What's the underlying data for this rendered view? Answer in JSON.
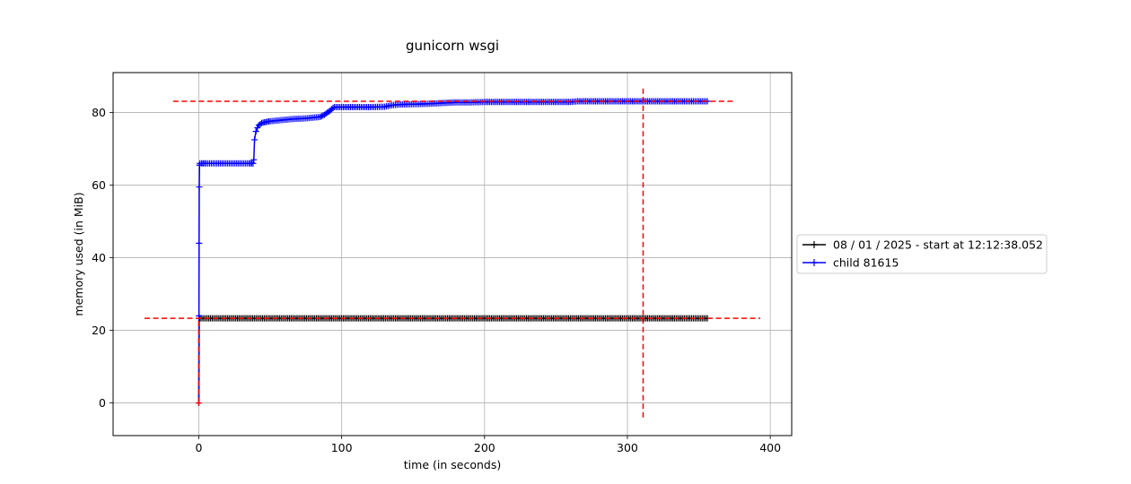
{
  "chart_data": {
    "type": "line",
    "title": "gunicorn wsgi",
    "xlabel": "time (in seconds)",
    "ylabel": "memory used (in MiB)",
    "xlim": [
      -60,
      415
    ],
    "ylim": [
      -9,
      91
    ],
    "xticks": [
      0,
      100,
      200,
      300,
      400
    ],
    "yticks": [
      0,
      20,
      40,
      60,
      80
    ],
    "grid": true,
    "legend_position": "outside-right",
    "series": [
      {
        "name": "08 / 01 / 2025 - start at 12:12:38.052",
        "color": "#000000",
        "marker": "+",
        "x": [
          0,
          0.3,
          1,
          20,
          40,
          60,
          80,
          100,
          120,
          140,
          160,
          180,
          200,
          220,
          240,
          260,
          280,
          300,
          320,
          340,
          356
        ],
        "y": [
          0,
          23.3,
          23.3,
          23.3,
          23.3,
          23.3,
          23.3,
          23.3,
          23.3,
          23.3,
          23.3,
          23.3,
          23.3,
          23.3,
          23.3,
          23.3,
          23.3,
          23.3,
          23.3,
          23.3,
          23.3
        ]
      },
      {
        "name": "child 81615",
        "color": "#0000ff",
        "marker": "+",
        "x": [
          0,
          0.1,
          0.2,
          0.3,
          0.5,
          0.8,
          2,
          5,
          10,
          15,
          20,
          25,
          30,
          35,
          38,
          38.5,
          39,
          40,
          41,
          42,
          44,
          47,
          50,
          55,
          60,
          65,
          70,
          75,
          80,
          85,
          88,
          90,
          92,
          94,
          95,
          100,
          110,
          120,
          130,
          135,
          140,
          150,
          160,
          170,
          180,
          190,
          200,
          220,
          240,
          260,
          265,
          280,
          300,
          320,
          340,
          356
        ],
        "y": [
          0,
          24,
          44,
          59.5,
          65.5,
          66,
          66,
          66,
          66,
          66,
          66,
          66,
          66,
          66,
          66,
          67,
          72.5,
          74.8,
          75.8,
          76.5,
          77.1,
          77.4,
          77.6,
          77.8,
          78,
          78.2,
          78.3,
          78.4,
          78.6,
          78.8,
          79.4,
          80,
          80.5,
          81.3,
          81.5,
          81.5,
          81.5,
          81.5,
          81.6,
          82,
          82.2,
          82.3,
          82.4,
          82.6,
          82.8,
          82.8,
          82.9,
          82.9,
          82.9,
          82.9,
          83.1,
          83.1,
          83.1,
          83.1,
          83.1,
          83.1
        ]
      }
    ],
    "reference_lines": {
      "color": "#ff0000",
      "style": "dashed",
      "horizontal": [
        {
          "y": 23.3,
          "x_from": -38,
          "x_to": 393
        },
        {
          "y": 83.1,
          "x_from": -18,
          "x_to": 374
        }
      ],
      "vertical": [
        {
          "x": 0,
          "y_from": 0,
          "y_to": 23.3
        },
        {
          "x": 311,
          "y_from": -4,
          "y_to": 87
        }
      ]
    }
  }
}
